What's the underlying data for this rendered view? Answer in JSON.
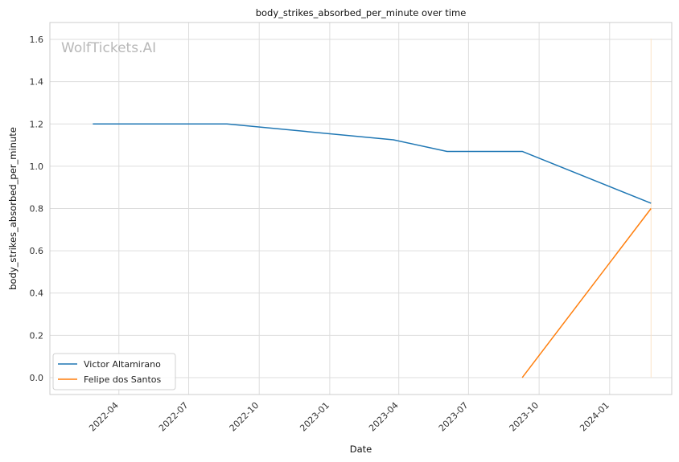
{
  "chart_data": {
    "type": "line",
    "title": "body_strikes_absorbed_per_minute over time",
    "xlabel": "Date",
    "ylabel": "body_strikes_absorbed_per_minute",
    "watermark": "WolfTickets.AI",
    "xlim": [
      "2022-01-01",
      "2024-03-22"
    ],
    "ylim": [
      -0.08,
      1.68
    ],
    "x_ticks": [
      {
        "date": "2022-04-01",
        "label": "2022-04"
      },
      {
        "date": "2022-07-01",
        "label": "2022-07"
      },
      {
        "date": "2022-10-01",
        "label": "2022-10"
      },
      {
        "date": "2023-01-01",
        "label": "2023-01"
      },
      {
        "date": "2023-04-01",
        "label": "2023-04"
      },
      {
        "date": "2023-07-01",
        "label": "2023-07"
      },
      {
        "date": "2023-10-01",
        "label": "2023-10"
      },
      {
        "date": "2024-01-01",
        "label": "2024-01"
      }
    ],
    "y_ticks": [
      {
        "value": 0.0,
        "label": "0.0"
      },
      {
        "value": 0.2,
        "label": "0.2"
      },
      {
        "value": 0.4,
        "label": "0.4"
      },
      {
        "value": 0.6,
        "label": "0.6"
      },
      {
        "value": 0.8,
        "label": "0.8"
      },
      {
        "value": 1.0,
        "label": "1.0"
      },
      {
        "value": 1.2,
        "label": "1.2"
      },
      {
        "value": 1.4,
        "label": "1.4"
      },
      {
        "value": 1.6,
        "label": "1.6"
      }
    ],
    "grid": true,
    "legend_position": "lower-left",
    "series": [
      {
        "name": "Victor Altamirano",
        "color": "#1f77b4",
        "points": [
          {
            "x": "2022-02-26",
            "y": 1.2
          },
          {
            "x": "2022-08-20",
            "y": 1.2
          },
          {
            "x": "2023-03-25",
            "y": 1.125
          },
          {
            "x": "2023-06-03",
            "y": 1.07
          },
          {
            "x": "2023-09-09",
            "y": 1.07
          },
          {
            "x": "2024-02-24",
            "y": 0.825
          }
        ]
      },
      {
        "name": "Felipe dos Santos",
        "color": "#ff7f0e",
        "points": [
          {
            "x": "2023-09-09",
            "y": 0.0
          },
          {
            "x": "2024-02-24",
            "y": 0.8
          }
        ]
      }
    ],
    "marker_line": {
      "x": "2024-02-24",
      "color": "#fbe3c8"
    }
  }
}
